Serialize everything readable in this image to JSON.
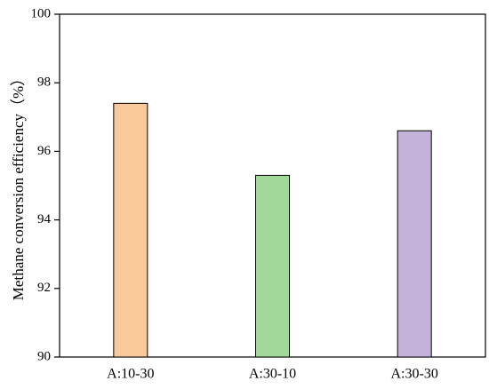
{
  "chart_data": {
    "type": "bar",
    "y_label": "Methane conversion efficiency（%）",
    "categories": [
      "A:10-30",
      "A:30-10",
      "A:30-30"
    ],
    "values": [
      97.4,
      95.3,
      96.6
    ],
    "colors": [
      "#f9c89b",
      "#a2d99a",
      "#c3b3d8"
    ],
    "ylim": [
      90,
      100
    ],
    "yticks": [
      90,
      92,
      94,
      96,
      98,
      100
    ],
    "grid": false
  }
}
